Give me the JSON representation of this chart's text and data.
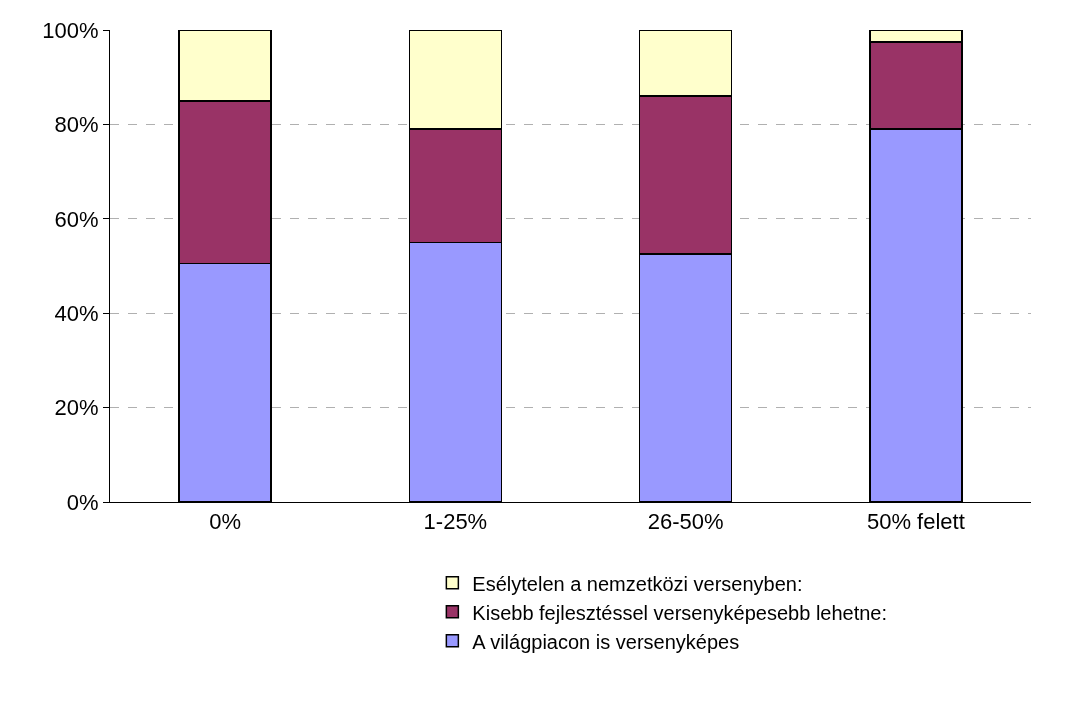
{
  "chart_data": {
    "type": "bar",
    "stacked": true,
    "categories": [
      "0%",
      "1-25%",
      "26-50%",
      "50% felett"
    ],
    "series": [
      {
        "name": "A világpiacon is versenyképes",
        "color": "#9999ff",
        "values": [
          50.5,
          55,
          52.5,
          79
        ]
      },
      {
        "name": "Kisebb fejlesztéssel versenyképesebb lehetne:",
        "color": "#993366",
        "values": [
          34.5,
          24,
          33.5,
          18.5
        ]
      },
      {
        "name": "Esélytelen a nemzetközi versenyben:",
        "color": "#ffffcc",
        "values": [
          15,
          21,
          14,
          2.5
        ]
      }
    ],
    "ylim": [
      0,
      100
    ],
    "yticks": [
      {
        "value": 0,
        "label": "0%"
      },
      {
        "value": 20,
        "label": "20%"
      },
      {
        "value": 40,
        "label": "40%"
      },
      {
        "value": 60,
        "label": "60%"
      },
      {
        "value": 80,
        "label": "80%"
      },
      {
        "value": 100,
        "label": "100%"
      }
    ],
    "grid": "y",
    "legend": "bottom"
  }
}
